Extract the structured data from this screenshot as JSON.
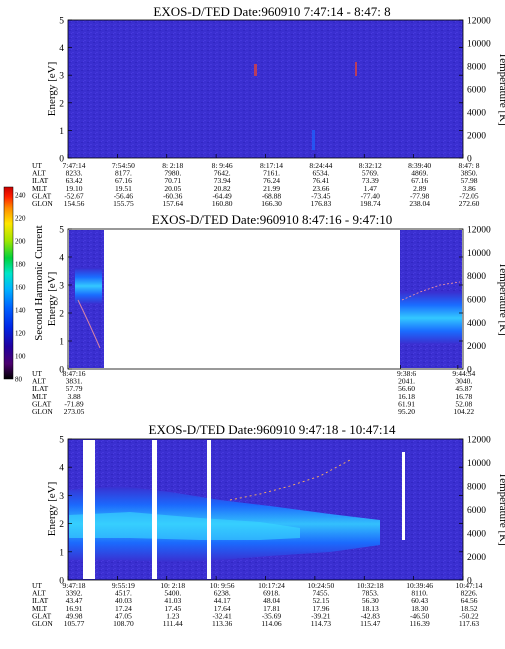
{
  "chart_data": [
    {
      "type": "heatmap",
      "title": "EXOS-D/TED   Date:960910  7:47:14 - 8:47: 8",
      "ylabel": "Energy [eV]",
      "ylabel_right": "Temperature [K]",
      "ylim": [
        0,
        5
      ],
      "yticks": [
        "0",
        "1",
        "2",
        "3",
        "4",
        "5"
      ],
      "y2lim": [
        0,
        12000
      ],
      "y2ticks": [
        "0",
        "2000",
        "4000",
        "6000",
        "8000",
        "10000",
        "12000"
      ],
      "x_time": [
        "7:47:14",
        "7:54:50",
        "8: 2:18",
        "8: 9:46",
        "8:17:14",
        "8:24:44",
        "8:32:12",
        "8:39:40",
        "8:47: 8"
      ],
      "orbit_rows": [
        {
          "label": "UT",
          "values": [
            "7:47:14",
            "7:54:50",
            "8: 2:18",
            "8: 9:46",
            "8:17:14",
            "8:24:44",
            "8:32:12",
            "8:39:40",
            "8:47: 8"
          ]
        },
        {
          "label": "ALT",
          "values": [
            "8233.",
            "8177.",
            "7980.",
            "7642.",
            "7161.",
            "6534.",
            "5769.",
            "4869.",
            "3850."
          ]
        },
        {
          "label": "ILAT",
          "values": [
            "63.42",
            "67.16",
            "70.71",
            "73.94",
            "76.24",
            "76.41",
            "73.39",
            "67.16",
            "57.98"
          ]
        },
        {
          "label": "MLT",
          "values": [
            "19.10",
            "19.51",
            "20.05",
            "20.82",
            "21.99",
            "23.66",
            "1.47",
            "2.89",
            "3.86"
          ]
        },
        {
          "label": "GLAT",
          "values": [
            "-52.67",
            "-56.46",
            "-60.36",
            "-64.49",
            "-68.88",
            "-73.45",
            "-77.40",
            "-77.98",
            "-72.05"
          ]
        },
        {
          "label": "GLON",
          "values": [
            "154.56",
            "155.75",
            "157.64",
            "160.80",
            "166.30",
            "176.83",
            "198.74",
            "238.04",
            "272.60"
          ]
        }
      ]
    },
    {
      "type": "heatmap",
      "title": "EXOS-D/TED   Date:960910  8:47:16 - 9:47:10",
      "ylabel": "Energy [eV]",
      "ylabel_right": "Temperature [K]",
      "ylim": [
        0,
        5
      ],
      "yticks": [
        "0",
        "1",
        "2",
        "3",
        "4",
        "5"
      ],
      "y2lim": [
        0,
        12000
      ],
      "y2ticks": [
        "0",
        "2000",
        "4000",
        "6000",
        "8000",
        "10000",
        "12000"
      ],
      "x_time": [
        "8:47:16",
        "9:38:6",
        "9:44:54"
      ],
      "orbit_rows": [
        {
          "label": "UT",
          "values": [
            "8:47:16",
            "9:38:6",
            "9:44:54"
          ]
        },
        {
          "label": "ALT",
          "values": [
            "3831.",
            "2041.",
            "3040."
          ]
        },
        {
          "label": "ILAT",
          "values": [
            "57.79",
            "56.60",
            "45.87"
          ]
        },
        {
          "label": "MLT",
          "values": [
            "3.88",
            "16.18",
            "16.78"
          ]
        },
        {
          "label": "GLAT",
          "values": [
            "-71.89",
            "61.91",
            "52.08"
          ]
        },
        {
          "label": "GLON",
          "values": [
            "273.05",
            "95.20",
            "104.22"
          ]
        }
      ]
    },
    {
      "type": "heatmap",
      "title": "EXOS-D/TED   Date:960910  9:47:18 - 10:47:14",
      "ylabel": "Energy [eV]",
      "ylabel_right": "Temperature [K]",
      "ylim": [
        0,
        5
      ],
      "yticks": [
        "0",
        "1",
        "2",
        "3",
        "4",
        "5"
      ],
      "y2lim": [
        0,
        12000
      ],
      "y2ticks": [
        "0",
        "2000",
        "4000",
        "6000",
        "8000",
        "10000",
        "12000"
      ],
      "x_time": [
        "9:47:18",
        "9:55:19",
        "10: 2:18",
        "10: 9:56",
        "10:17:24",
        "10:24:50",
        "10:32:18",
        "10:39:46",
        "10:47:14"
      ],
      "orbit_rows": [
        {
          "label": "UT",
          "values": [
            "9:47:18",
            "9:55:19",
            "10: 2:18",
            "10: 9:56",
            "10:17:24",
            "10:24:50",
            "10:32:18",
            "10:39:46",
            "10:47:14"
          ]
        },
        {
          "label": "ALT",
          "values": [
            "3392.",
            "4517.",
            "5400.",
            "6238.",
            "6918.",
            "7455.",
            "7853.",
            "8110.",
            "8226."
          ]
        },
        {
          "label": "ILAT",
          "values": [
            "43.47",
            "40.03",
            "41.03",
            "44.17",
            "48.04",
            "52.15",
            "56.30",
            "60.43",
            "64.56"
          ]
        },
        {
          "label": "MLT",
          "values": [
            "16.91",
            "17.24",
            "17.45",
            "17.64",
            "17.81",
            "17.96",
            "18.13",
            "18.30",
            "18.52"
          ]
        },
        {
          "label": "GLAT",
          "values": [
            "49.98",
            "47.05",
            "1.23",
            "-32.41",
            "-35.69",
            "-39.21",
            "-42.83",
            "-46.50",
            "-50.22"
          ]
        },
        {
          "label": "GLON",
          "values": [
            "105.77",
            "108.70",
            "111.44",
            "113.36",
            "114.06",
            "114.73",
            "115.47",
            "116.39",
            "117.63"
          ]
        }
      ]
    }
  ],
  "colorbar": {
    "label": "Second Harmonic Current",
    "ticks": [
      "80",
      "100",
      "120",
      "140",
      "160",
      "180",
      "200",
      "220",
      "240"
    ],
    "colors": [
      "#000000",
      "#4b006e",
      "#2000a0",
      "#0026e6",
      "#0060ff",
      "#00b4ff",
      "#00e6c8",
      "#00d23c",
      "#a0e600",
      "#ffe600",
      "#ff8c00",
      "#ff1e00",
      "#c80000"
    ]
  },
  "colors": {
    "background_field": "#3a2fd0",
    "band": "#1a8cff",
    "band_core": "#34d2ff",
    "gap": "#ffffff"
  }
}
